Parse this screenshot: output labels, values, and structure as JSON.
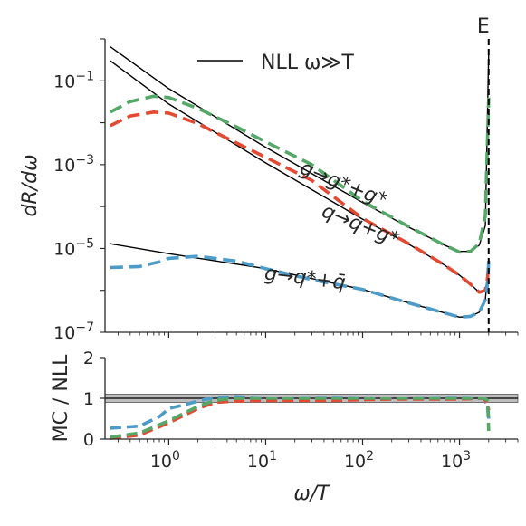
{
  "chart_data": [
    {
      "type": "line",
      "panel": "top",
      "xscale": "log",
      "yscale": "log",
      "xlim": [
        0.22,
        4000
      ],
      "ylim": [
        1e-07,
        1.0
      ],
      "ylabel": "dR/dω",
      "yticks": [
        {
          "value": 0.1,
          "base": "10",
          "exp": "−1"
        },
        {
          "value": 0.001,
          "base": "10",
          "exp": "−3"
        },
        {
          "value": 1e-05,
          "base": "10",
          "exp": "−5"
        },
        {
          "value": 1e-07,
          "base": "10",
          "exp": "−7"
        }
      ],
      "legend": {
        "label": "NLL ω≫T",
        "placement": "top-center"
      },
      "vline": {
        "x": 2000,
        "label": "E",
        "style": "dashed",
        "color": "#000000"
      },
      "annotations": [
        {
          "text": "g→g*+g*",
          "x": 60,
          "y": 0.00025,
          "rotation": 22
        },
        {
          "text": "q→q+g*",
          "x": 90,
          "y": 2.6e-05,
          "rotation": 22
        },
        {
          "text": "g→q*+q̄",
          "x": 25,
          "y": 1.4e-06,
          "rotation": 7
        }
      ],
      "series": [
        {
          "color": "#000000",
          "style": "solid",
          "x": [
            0.25,
            1,
            10,
            100,
            300,
            700,
            1000,
            1300,
            1600,
            1850,
            2000
          ],
          "y": [
            0.65,
            0.065,
            0.0026,
            0.000125,
            3.2e-05,
            1.2e-05,
            8.5e-06,
            8.5e-06,
            1.2e-05,
            3.5e-05,
            0.5
          ]
        },
        {
          "color": "#000000",
          "style": "solid",
          "x": [
            0.25,
            1,
            10,
            100,
            300,
            700,
            1000,
            1300,
            1600,
            1850,
            2000
          ],
          "y": [
            0.3,
            0.028,
            0.0011,
            5e-05,
            1.25e-05,
            4e-06,
            2.3e-06,
            1.4e-06,
            9e-07,
            1e-06,
            3e-06
          ]
        },
        {
          "color": "#000000",
          "style": "solid",
          "x": [
            0.25,
            1,
            10,
            100,
            300,
            600,
            1000,
            1300,
            1600,
            1850,
            2000
          ],
          "y": [
            1.3e-05,
            7.5e-06,
            3.3e-06,
            1.05e-06,
            5e-07,
            3.2e-07,
            2.3e-07,
            2.4e-07,
            3e-07,
            6e-07,
            5e-06
          ]
        },
        {
          "color": "#55a868",
          "style": "dashed",
          "x": [
            0.25,
            0.4,
            0.7,
            1,
            2,
            5,
            10,
            30,
            100,
            300,
            700,
            1000,
            1300,
            1600,
            1850,
            1950,
            2000
          ],
          "y": [
            0.018,
            0.032,
            0.043,
            0.04,
            0.022,
            0.008,
            0.0035,
            0.001,
            0.000135,
            3.3e-05,
            1.2e-05,
            8.2e-06,
            8.5e-06,
            1.3e-05,
            6e-05,
            0.005,
            0.04
          ]
        },
        {
          "color": "#e24a33",
          "style": "dashed",
          "x": [
            0.25,
            0.4,
            0.7,
            1,
            2,
            5,
            10,
            30,
            100,
            300,
            700,
            1000,
            1300,
            1600,
            1850,
            1950,
            2000
          ],
          "y": [
            0.0085,
            0.0145,
            0.018,
            0.017,
            0.0095,
            0.0033,
            0.0015,
            0.00042,
            5.2e-05,
            1.3e-05,
            4e-06,
            2.3e-06,
            1.4e-06,
            9e-07,
            1e-06,
            2e-06,
            5e-06
          ]
        },
        {
          "color": "#4c9bc8",
          "style": "dashed",
          "x": [
            0.25,
            0.5,
            0.8,
            1,
            2,
            5,
            10,
            30,
            100,
            300,
            600,
            1000,
            1300,
            1600,
            1850,
            1950,
            2000
          ],
          "y": [
            3.5e-06,
            3.7e-06,
            4.8e-06,
            5.8e-06,
            6.5e-06,
            5e-06,
            3.3e-06,
            1.8e-06,
            1.05e-06,
            5e-07,
            3.2e-07,
            2.3e-07,
            2.4e-07,
            3e-07,
            6e-07,
            1.5e-06,
            5e-06
          ]
        }
      ]
    },
    {
      "type": "line",
      "panel": "bottom",
      "xscale": "log",
      "xlim": [
        0.22,
        4000
      ],
      "ylim": [
        0,
        2
      ],
      "xlabel": "ω/T",
      "ylabel": "MC / NLL",
      "yticks": [
        "0",
        "1",
        "2"
      ],
      "xticks": [
        {
          "value": 1,
          "base": "10",
          "exp": "0"
        },
        {
          "value": 10,
          "base": "10",
          "exp": "1"
        },
        {
          "value": 100,
          "base": "10",
          "exp": "2"
        },
        {
          "value": 1000,
          "base": "10",
          "exp": "3"
        }
      ],
      "band": {
        "y": [
          0.9,
          1.1
        ],
        "line": 1.0
      },
      "series": [
        {
          "color": "#4c9bc8",
          "style": "dashed",
          "x": [
            0.25,
            0.5,
            0.8,
            1,
            1.5,
            2,
            3,
            5,
            10,
            50,
            200,
            1000,
            1800,
            1950,
            2000
          ],
          "y": [
            0.27,
            0.32,
            0.55,
            0.75,
            0.85,
            0.93,
            1.02,
            1.04,
            1.0,
            1.02,
            1.0,
            1.02,
            1.0,
            0.8,
            0.5
          ]
        },
        {
          "color": "#e24a33",
          "style": "dashed",
          "x": [
            0.25,
            0.5,
            1,
            2,
            3,
            5,
            10,
            50,
            200,
            1000,
            1800,
            1950,
            2000
          ],
          "y": [
            0.02,
            0.1,
            0.4,
            0.75,
            0.9,
            0.93,
            0.95,
            0.95,
            0.98,
            0.98,
            1.0,
            0.85,
            0.7
          ]
        },
        {
          "color": "#55a868",
          "style": "dashed",
          "x": [
            0.25,
            0.5,
            1,
            2,
            3,
            5,
            10,
            50,
            200,
            1000,
            1800,
            1950,
            2000
          ],
          "y": [
            0.05,
            0.15,
            0.45,
            0.8,
            0.95,
            1.0,
            1.0,
            1.0,
            1.0,
            1.0,
            1.0,
            0.95,
            0.2
          ]
        }
      ]
    }
  ]
}
